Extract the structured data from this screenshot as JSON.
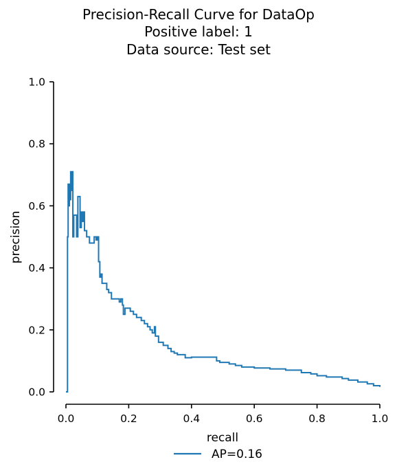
{
  "chart_data": {
    "type": "line",
    "title": [
      "Precision-Recall Curve for DataOp",
      "Positive label: 1",
      "Data source: Test set"
    ],
    "xlabel": "recall",
    "ylabel": "precision",
    "xlim": [
      0.0,
      1.0
    ],
    "ylim": [
      0.0,
      1.0
    ],
    "xticks": [
      "0.0",
      "0.2",
      "0.4",
      "0.6",
      "0.8",
      "1.0"
    ],
    "yticks": [
      "0.0",
      "0.2",
      "0.4",
      "0.6",
      "0.8",
      "1.0"
    ],
    "grid": false,
    "legend_position": "bottom-center",
    "colors": {
      "series": "#1f77b4",
      "axis": "#000000"
    },
    "series": [
      {
        "name": "AP=0.16",
        "step": true,
        "points": [
          [
            0.0,
            0.0
          ],
          [
            0.005,
            0.0
          ],
          [
            0.005,
            0.5
          ],
          [
            0.007,
            0.5
          ],
          [
            0.007,
            0.67
          ],
          [
            0.009,
            0.67
          ],
          [
            0.009,
            0.6
          ],
          [
            0.011,
            0.6
          ],
          [
            0.011,
            0.67
          ],
          [
            0.013,
            0.67
          ],
          [
            0.013,
            0.62
          ],
          [
            0.015,
            0.62
          ],
          [
            0.015,
            0.71
          ],
          [
            0.017,
            0.71
          ],
          [
            0.017,
            0.65
          ],
          [
            0.019,
            0.65
          ],
          [
            0.019,
            0.71
          ],
          [
            0.022,
            0.71
          ],
          [
            0.022,
            0.5
          ],
          [
            0.025,
            0.5
          ],
          [
            0.025,
            0.57
          ],
          [
            0.034,
            0.57
          ],
          [
            0.034,
            0.5
          ],
          [
            0.038,
            0.5
          ],
          [
            0.038,
            0.63
          ],
          [
            0.045,
            0.63
          ],
          [
            0.045,
            0.53
          ],
          [
            0.049,
            0.53
          ],
          [
            0.049,
            0.58
          ],
          [
            0.053,
            0.58
          ],
          [
            0.053,
            0.55
          ],
          [
            0.056,
            0.55
          ],
          [
            0.056,
            0.58
          ],
          [
            0.059,
            0.58
          ],
          [
            0.059,
            0.52
          ],
          [
            0.066,
            0.52
          ],
          [
            0.066,
            0.5
          ],
          [
            0.075,
            0.5
          ],
          [
            0.075,
            0.48
          ],
          [
            0.09,
            0.48
          ],
          [
            0.09,
            0.5
          ],
          [
            0.096,
            0.5
          ],
          [
            0.096,
            0.49
          ],
          [
            0.1,
            0.49
          ],
          [
            0.1,
            0.5
          ],
          [
            0.104,
            0.5
          ],
          [
            0.104,
            0.42
          ],
          [
            0.108,
            0.42
          ],
          [
            0.108,
            0.37
          ],
          [
            0.112,
            0.37
          ],
          [
            0.112,
            0.38
          ],
          [
            0.115,
            0.38
          ],
          [
            0.115,
            0.35
          ],
          [
            0.13,
            0.35
          ],
          [
            0.13,
            0.33
          ],
          [
            0.136,
            0.33
          ],
          [
            0.136,
            0.32
          ],
          [
            0.145,
            0.32
          ],
          [
            0.145,
            0.3
          ],
          [
            0.17,
            0.3
          ],
          [
            0.17,
            0.29
          ],
          [
            0.175,
            0.29
          ],
          [
            0.175,
            0.3
          ],
          [
            0.18,
            0.3
          ],
          [
            0.18,
            0.28
          ],
          [
            0.183,
            0.28
          ],
          [
            0.183,
            0.25
          ],
          [
            0.188,
            0.25
          ],
          [
            0.188,
            0.27
          ],
          [
            0.205,
            0.27
          ],
          [
            0.205,
            0.26
          ],
          [
            0.215,
            0.26
          ],
          [
            0.215,
            0.25
          ],
          [
            0.225,
            0.25
          ],
          [
            0.225,
            0.24
          ],
          [
            0.24,
            0.24
          ],
          [
            0.24,
            0.23
          ],
          [
            0.25,
            0.23
          ],
          [
            0.25,
            0.22
          ],
          [
            0.26,
            0.22
          ],
          [
            0.26,
            0.21
          ],
          [
            0.268,
            0.21
          ],
          [
            0.268,
            0.2
          ],
          [
            0.275,
            0.2
          ],
          [
            0.275,
            0.19
          ],
          [
            0.282,
            0.19
          ],
          [
            0.282,
            0.21
          ],
          [
            0.285,
            0.21
          ],
          [
            0.285,
            0.18
          ],
          [
            0.295,
            0.18
          ],
          [
            0.295,
            0.16
          ],
          [
            0.31,
            0.16
          ],
          [
            0.31,
            0.15
          ],
          [
            0.325,
            0.15
          ],
          [
            0.325,
            0.14
          ],
          [
            0.335,
            0.14
          ],
          [
            0.335,
            0.13
          ],
          [
            0.345,
            0.13
          ],
          [
            0.345,
            0.125
          ],
          [
            0.355,
            0.125
          ],
          [
            0.355,
            0.12
          ],
          [
            0.38,
            0.12
          ],
          [
            0.38,
            0.11
          ],
          [
            0.4,
            0.11
          ],
          [
            0.4,
            0.112
          ],
          [
            0.48,
            0.112
          ],
          [
            0.48,
            0.1
          ],
          [
            0.49,
            0.1
          ],
          [
            0.49,
            0.095
          ],
          [
            0.52,
            0.095
          ],
          [
            0.52,
            0.09
          ],
          [
            0.54,
            0.09
          ],
          [
            0.54,
            0.085
          ],
          [
            0.56,
            0.085
          ],
          [
            0.56,
            0.08
          ],
          [
            0.6,
            0.08
          ],
          [
            0.6,
            0.077
          ],
          [
            0.65,
            0.077
          ],
          [
            0.65,
            0.074
          ],
          [
            0.7,
            0.074
          ],
          [
            0.7,
            0.07
          ],
          [
            0.75,
            0.07
          ],
          [
            0.75,
            0.062
          ],
          [
            0.78,
            0.062
          ],
          [
            0.78,
            0.058
          ],
          [
            0.8,
            0.058
          ],
          [
            0.8,
            0.052
          ],
          [
            0.83,
            0.052
          ],
          [
            0.83,
            0.048
          ],
          [
            0.88,
            0.048
          ],
          [
            0.88,
            0.043
          ],
          [
            0.9,
            0.043
          ],
          [
            0.9,
            0.038
          ],
          [
            0.93,
            0.038
          ],
          [
            0.93,
            0.032
          ],
          [
            0.96,
            0.032
          ],
          [
            0.96,
            0.026
          ],
          [
            0.98,
            0.026
          ],
          [
            0.98,
            0.02
          ],
          [
            1.0,
            0.02
          ],
          [
            1.0,
            0.016
          ]
        ]
      }
    ]
  }
}
